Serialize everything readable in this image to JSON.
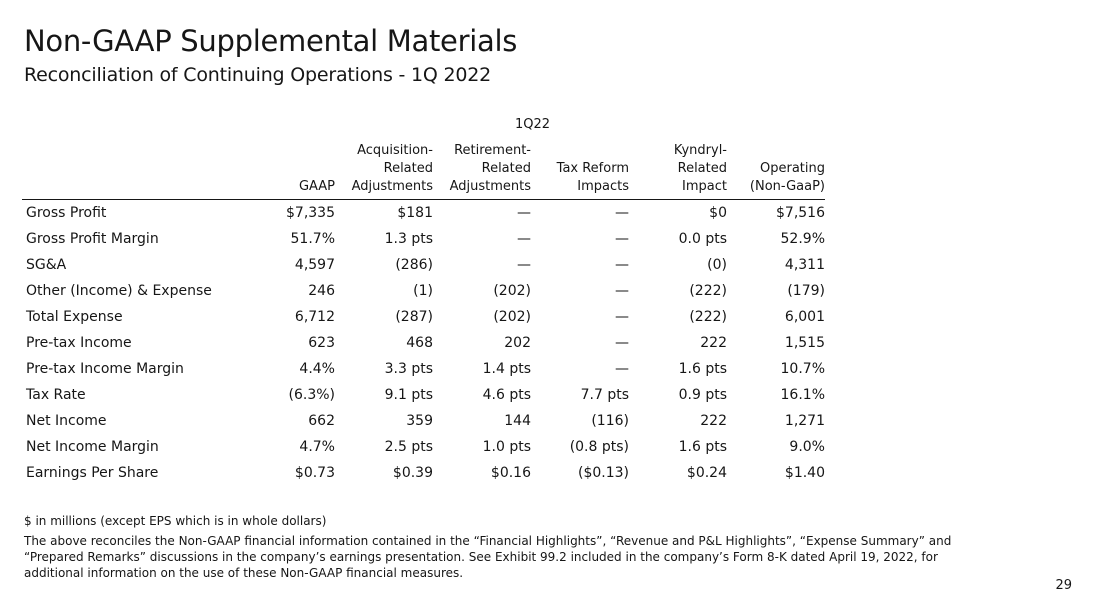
{
  "header": {
    "title": "Non-GAAP Supplemental Materials",
    "subtitle": "Reconciliation of Continuing Operations - 1Q 2022"
  },
  "table": {
    "period": "1Q22",
    "columns": [
      {
        "key": "gaap",
        "lines": [
          "GAAP"
        ]
      },
      {
        "key": "acquisition",
        "lines": [
          "Acquisition-",
          "Related",
          "Adjustments"
        ]
      },
      {
        "key": "retirement",
        "lines": [
          "Retirement-",
          "Related",
          "Adjustments"
        ]
      },
      {
        "key": "tax_reform",
        "lines": [
          "Tax Reform",
          "Impacts"
        ]
      },
      {
        "key": "kyndryl",
        "lines": [
          "Kyndryl-",
          "Related",
          "Impact"
        ]
      },
      {
        "key": "operating",
        "lines": [
          "Operating",
          "(Non-GaaP)"
        ]
      }
    ],
    "rows": [
      {
        "label": "Gross Profit",
        "values": [
          "$7,335",
          "$181",
          "—",
          "—",
          "$0",
          "$7,516"
        ]
      },
      {
        "label": "Gross Profit Margin",
        "values": [
          "51.7%",
          "1.3 pts",
          "—",
          "—",
          "0.0 pts",
          "52.9%"
        ]
      },
      {
        "label": "SG&A",
        "values": [
          "4,597",
          "(286)",
          "—",
          "—",
          "(0)",
          "4,311"
        ]
      },
      {
        "label": "Other (Income) & Expense",
        "values": [
          "246",
          "(1)",
          "(202)",
          "—",
          "(222)",
          "(179)"
        ]
      },
      {
        "label": "Total Expense",
        "values": [
          "6,712",
          "(287)",
          "(202)",
          "—",
          "(222)",
          "6,001"
        ]
      },
      {
        "label": "Pre-tax Income",
        "values": [
          "623",
          "468",
          "202",
          "—",
          "222",
          "1,515"
        ]
      },
      {
        "label": "Pre-tax Income Margin",
        "values": [
          "4.4%",
          "3.3 pts",
          "1.4 pts",
          "—",
          "1.6 pts",
          "10.7%"
        ]
      },
      {
        "label": "Tax Rate",
        "values": [
          "(6.3%)",
          "9.1 pts",
          "4.6 pts",
          "7.7 pts",
          "0.9 pts",
          "16.1%"
        ]
      },
      {
        "label": "Net Income",
        "values": [
          "662",
          "359",
          "144",
          "(116)",
          "222",
          "1,271"
        ]
      },
      {
        "label": "Net Income Margin",
        "values": [
          "4.7%",
          "2.5 pts",
          "1.0 pts",
          "(0.8 pts)",
          "1.6 pts",
          "9.0%"
        ]
      },
      {
        "label": "Earnings Per Share",
        "values": [
          "$0.73",
          "$0.39",
          "$0.16",
          "($0.13)",
          "$0.24",
          "$1.40"
        ]
      }
    ]
  },
  "notes": {
    "units": "$ in millions (except EPS which is in whole dollars)",
    "description": "The above reconciles the Non-GAAP financial information contained in the “Financial Highlights”, “Revenue and P&L Highlights”, “Expense Summary” and “Prepared Remarks” discussions in the company’s earnings presentation. See Exhibit 99.2 included in the company’s Form 8-K dated April 19, 2022, for additional information on the use of these Non-GAAP financial measures."
  },
  "page_number": "29"
}
